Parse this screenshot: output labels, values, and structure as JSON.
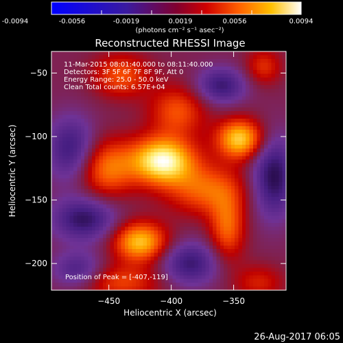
{
  "colorbar": {
    "ticks": [
      "-0.0094",
      "-0.0056",
      "-0.0019",
      "0.0019",
      "0.0056",
      "0.0094"
    ],
    "units": "(photons cm⁻² s⁻¹ asec⁻²)",
    "min": -0.0094,
    "max": 0.0094
  },
  "chart_data": {
    "type": "heatmap",
    "title": "Reconstructed RHESSI Image",
    "xlabel": "Heliocentric X (arcsec)",
    "ylabel": "Heliocentric Y (arcsec)",
    "xlim": [
      -496,
      -308
    ],
    "ylim": [
      -221,
      -33
    ],
    "xticks": [
      -450,
      -400,
      -350
    ],
    "yticks": [
      -50,
      -100,
      -150,
      -200
    ],
    "info_lines": [
      "11-Mar-2015 08:01:40.000 to 08:11:40.000",
      "Detectors: 3F 5F 6F 7F 8F 9F, Att 0",
      "Energy Range: 25.0 - 50.0 keV",
      "Clean    Total counts: 6.57E+04"
    ],
    "peak_label": "Position of Peak = [-407,-119]",
    "peak": [
      -407,
      -119
    ],
    "sources": [
      {
        "x": -407,
        "y": -119,
        "amp": 1.0,
        "sx": 18,
        "sy": 13
      },
      {
        "x": -345,
        "y": -102,
        "amp": 0.82,
        "sx": 13,
        "sy": 11
      },
      {
        "x": -425,
        "y": -183,
        "amp": 0.78,
        "sx": 15,
        "sy": 11
      },
      {
        "x": -452,
        "y": -125,
        "amp": 0.55,
        "sx": 16,
        "sy": 16
      },
      {
        "x": -372,
        "y": -142,
        "amp": 0.5,
        "sx": 22,
        "sy": 14
      },
      {
        "x": -355,
        "y": -172,
        "amp": 0.5,
        "sx": 10,
        "sy": 18
      },
      {
        "x": -395,
        "y": -80,
        "amp": 0.45,
        "sx": 16,
        "sy": 14
      },
      {
        "x": -440,
        "y": -52,
        "amp": 0.45,
        "sx": 16,
        "sy": 12
      },
      {
        "x": -326,
        "y": -45,
        "amp": 0.35,
        "sx": 10,
        "sy": 10
      },
      {
        "x": -440,
        "y": -215,
        "amp": 0.4,
        "sx": 22,
        "sy": 10
      },
      {
        "x": -330,
        "y": -215,
        "amp": 0.3,
        "sx": 14,
        "sy": 10
      },
      {
        "x": -480,
        "y": -110,
        "amp": -0.5,
        "sx": 14,
        "sy": 18
      },
      {
        "x": -470,
        "y": -165,
        "amp": -0.55,
        "sx": 18,
        "sy": 12
      },
      {
        "x": -318,
        "y": -132,
        "amp": -0.6,
        "sx": 12,
        "sy": 22
      },
      {
        "x": -360,
        "y": -60,
        "amp": -0.5,
        "sx": 14,
        "sy": 10
      },
      {
        "x": -385,
        "y": -200,
        "amp": -0.5,
        "sx": 16,
        "sy": 12
      },
      {
        "x": -475,
        "y": -205,
        "amp": -0.4,
        "sx": 14,
        "sy": 10
      }
    ]
  },
  "footer": {
    "timestamp": "26-Aug-2017 06:05"
  }
}
